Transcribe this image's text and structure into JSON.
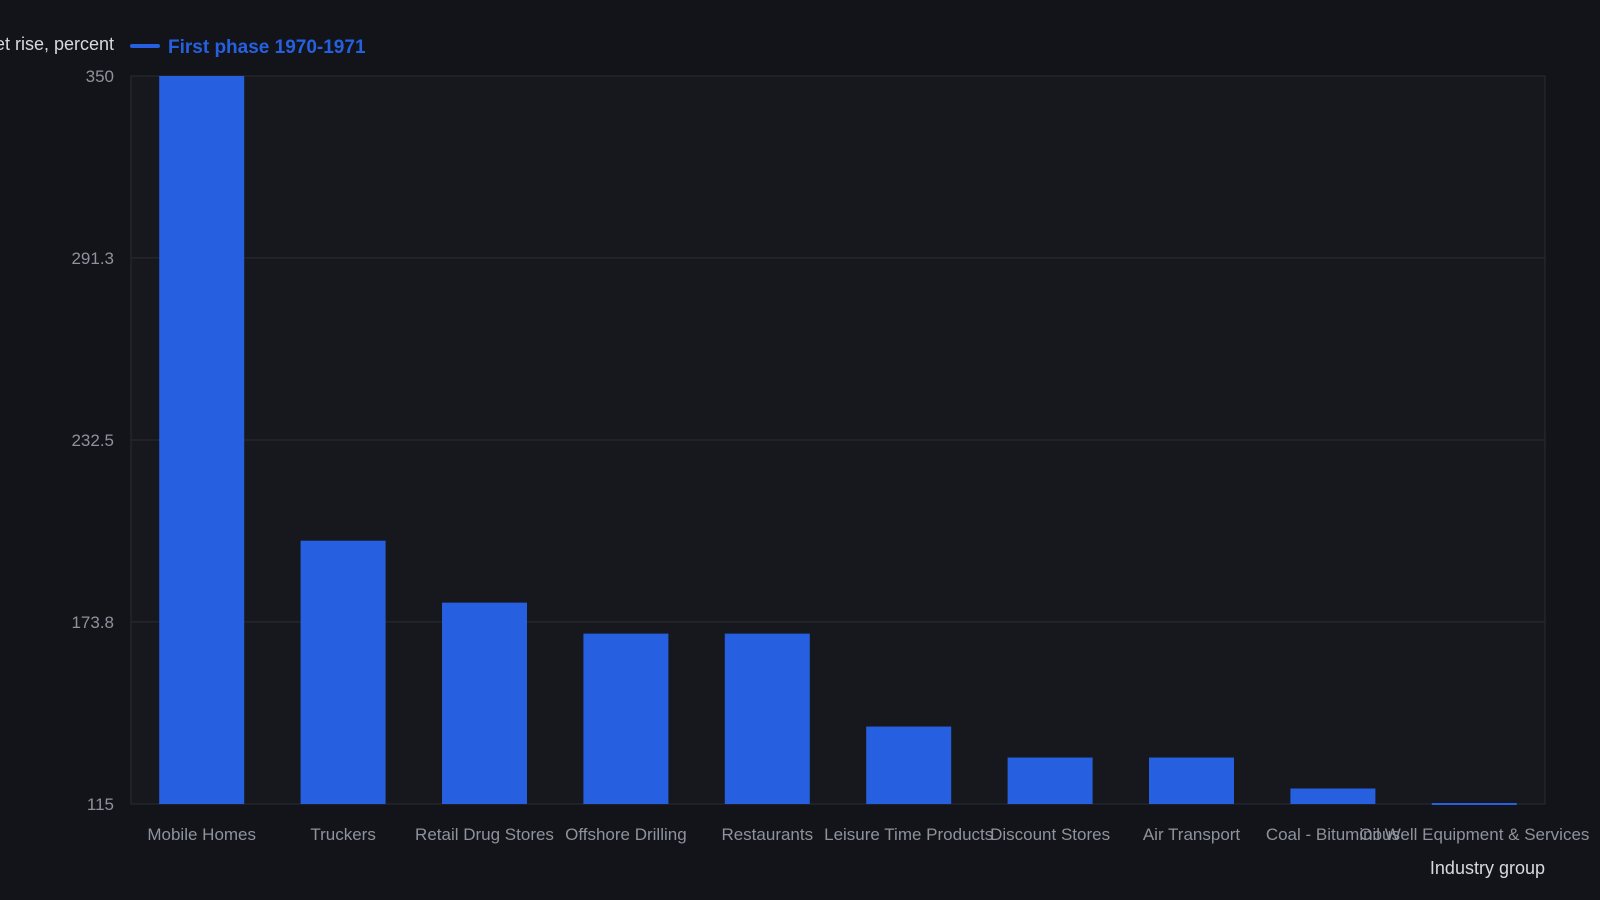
{
  "chart_data": {
    "type": "bar",
    "ylabel": "Market rise, percent",
    "xlabel": "Industry group",
    "legend_placement": "top-left",
    "grid": true,
    "ylim": [
      115,
      350
    ],
    "yticks": [
      "350",
      "291.3",
      "232.5",
      "173.8",
      "115"
    ],
    "categories": [
      "Mobile Homes",
      "Truckers",
      "Retail Drug Stores",
      "Offshore Drilling",
      "Restaurants",
      "Leisure Time Products",
      "Discount Stores",
      "Air Transport",
      "Coal - Bituminous",
      "Oil Well Equipment & Services"
    ],
    "series": [
      {
        "name": "First phase 1970-1971",
        "color": "#2660e0",
        "values": [
          350,
          200,
          180,
          170,
          170,
          140,
          130,
          130,
          120,
          115
        ]
      }
    ]
  }
}
